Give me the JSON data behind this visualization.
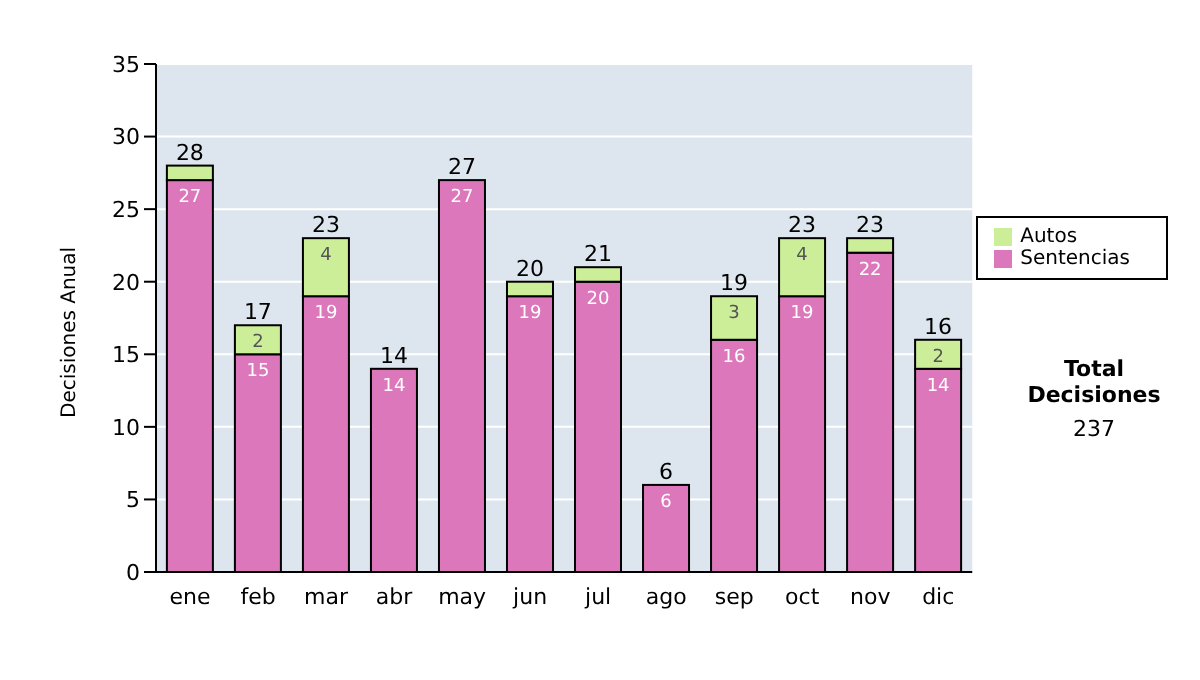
{
  "chart_data": {
    "type": "bar",
    "stacked": true,
    "ylabel": "Decisiones Anual",
    "categories": [
      "ene",
      "feb",
      "mar",
      "abr",
      "may",
      "jun",
      "jul",
      "ago",
      "sep",
      "oct",
      "nov",
      "dic"
    ],
    "series": [
      {
        "name": "Sentencias",
        "color": "#dd77bb",
        "values": [
          27,
          15,
          19,
          14,
          27,
          19,
          20,
          6,
          16,
          19,
          22,
          14
        ],
        "value_labels": [
          "27",
          "15",
          "19",
          "14",
          "27",
          "19",
          "20",
          "6",
          "16",
          "19",
          "22",
          "14"
        ]
      },
      {
        "name": "Autos",
        "color": "#ccee99",
        "values": [
          1,
          2,
          4,
          0,
          0,
          1,
          1,
          0,
          3,
          4,
          1,
          2
        ],
        "value_labels": [
          null,
          "2",
          "4",
          null,
          null,
          null,
          null,
          null,
          "3",
          "4",
          null,
          "2"
        ]
      }
    ],
    "totals": [
      "28",
      "17",
      "23",
      "14",
      "27",
      "20",
      "21",
      "6",
      "19",
      "23",
      "23",
      "16"
    ],
    "ylim": [
      0,
      35
    ],
    "yticks": [
      0,
      5,
      10,
      15,
      20,
      25,
      30,
      35
    ],
    "grid": "y",
    "legend": "right",
    "annotations": [
      "Total Decisiones",
      "237"
    ]
  }
}
